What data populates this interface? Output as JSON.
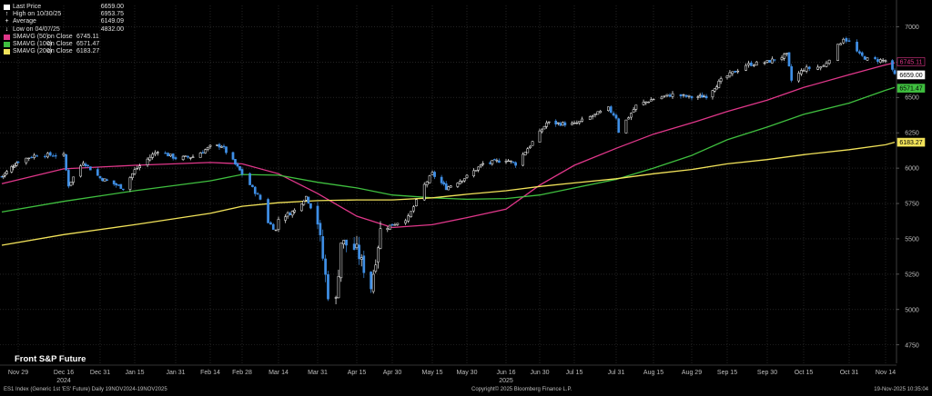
{
  "legend": [
    {
      "marker": "square-white",
      "name": "Last Price",
      "sub": "",
      "value": "6659.00",
      "color": "#ffffff"
    },
    {
      "marker": "tick",
      "name": "High on 10/30/25",
      "sub": "",
      "value": "6953.75",
      "color": "#ffffff"
    },
    {
      "marker": "plus",
      "name": "Average",
      "sub": "",
      "value": "6149.09",
      "color": "#ffffff"
    },
    {
      "marker": "tick-down",
      "name": "Low on 04/07/25",
      "sub": "",
      "value": "4832.00",
      "color": "#ffffff"
    },
    {
      "marker": "square",
      "name": "SMAVG (50)",
      "sub": "on Close",
      "value": "6745.11",
      "color": "#e0378a"
    },
    {
      "marker": "square",
      "name": "SMAVG (100)",
      "sub": "on Close",
      "value": "6571.47",
      "color": "#3fbf3f"
    },
    {
      "marker": "square",
      "name": "SMAVG (200)",
      "sub": "on Close",
      "value": "6183.27",
      "color": "#f2e35a"
    }
  ],
  "title_left": "Front S&P Future",
  "footer": {
    "left": "ES1 Index (Generic 1st 'ES' Future) Daily 19NOV2024-19NOV2025",
    "center": "Copyright© 2025 Bloomberg Finance L.P.",
    "right": "19-Nov-2025 10:35:04"
  },
  "chart_data": {
    "type": "line",
    "title": "Front S&P Future",
    "y_ticks": [
      4750,
      5000,
      5250,
      5500,
      5750,
      6000,
      6250,
      6500,
      6750,
      7000
    ],
    "ylim": [
      4620,
      7150
    ],
    "x_ticks": [
      "Nov 29",
      "Dec 16",
      "Dec 31",
      "Jan 15",
      "Jan 31",
      "Feb 14",
      "Feb 28",
      "Mar 14",
      "Mar 31",
      "Apr 15",
      "Apr 30",
      "May 15",
      "May 30",
      "Jun 16",
      "Jun 30",
      "Jul 15",
      "Jul 31",
      "Aug 15",
      "Aug 29",
      "Sep 15",
      "Sep 30",
      "Oct 15",
      "Oct 31",
      "Nov 14"
    ],
    "x_year_labels": [
      {
        "label": "2024",
        "under": "Dec 16"
      },
      {
        "label": "2025",
        "under": "Jun 16"
      }
    ],
    "price_points": [
      [
        "Nov 19",
        5940
      ],
      [
        "Nov 29",
        6050
      ],
      [
        "Dec 06",
        6095
      ],
      [
        "Dec 16",
        6090
      ],
      [
        "Dec 18",
        5880
      ],
      [
        "Dec 24",
        6045
      ],
      [
        "Dec 31",
        5930
      ],
      [
        "Jan 10",
        5860
      ],
      [
        "Jan 15",
        5985
      ],
      [
        "Jan 24",
        6125
      ],
      [
        "Jan 31",
        6070
      ],
      [
        "Feb 07",
        6080
      ],
      [
        "Feb 14",
        6150
      ],
      [
        "Feb 19",
        6160
      ],
      [
        "Feb 28",
        5960
      ],
      [
        "Mar 07",
        5780
      ],
      [
        "Mar 10",
        5620
      ],
      [
        "Mar 13",
        5560
      ],
      [
        "Mar 14",
        5640
      ],
      [
        "Mar 21",
        5700
      ],
      [
        "Mar 26",
        5800
      ],
      [
        "Mar 31",
        5620
      ],
      [
        "Apr 04",
        5110
      ],
      [
        "Apr 07",
        5060
      ],
      [
        "Apr 09",
        5480
      ],
      [
        "Apr 15",
        5420
      ],
      [
        "Apr 21",
        5160
      ],
      [
        "Apr 25",
        5560
      ],
      [
        "Apr 30",
        5600
      ],
      [
        "May 06",
        5650
      ],
      [
        "May 12",
        5880
      ],
      [
        "May 15",
        5960
      ],
      [
        "May 21",
        5860
      ],
      [
        "May 30",
        5940
      ],
      [
        "Jun 06",
        6030
      ],
      [
        "Jun 16",
        6060
      ],
      [
        "Jun 20",
        6030
      ],
      [
        "Jun 30",
        6250
      ],
      [
        "Jul 03",
        6320
      ],
      [
        "Jul 15",
        6310
      ],
      [
        "Jul 28",
        6420
      ],
      [
        "Jul 31",
        6360
      ],
      [
        "Aug 01",
        6260
      ],
      [
        "Aug 08",
        6440
      ],
      [
        "Aug 15",
        6490
      ],
      [
        "Aug 22",
        6520
      ],
      [
        "Aug 29",
        6500
      ],
      [
        "Sep 05",
        6510
      ],
      [
        "Sep 12",
        6620
      ],
      [
        "Sep 15",
        6650
      ],
      [
        "Sep 22",
        6730
      ],
      [
        "Sep 30",
        6750
      ],
      [
        "Oct 08",
        6800
      ],
      [
        "Oct 10",
        6620
      ],
      [
        "Oct 15",
        6700
      ],
      [
        "Oct 22",
        6720
      ],
      [
        "Oct 29",
        6920
      ],
      [
        "Oct 31",
        6890
      ],
      [
        "Nov 04",
        6800
      ],
      [
        "Nov 07",
        6770
      ],
      [
        "Nov 14",
        6760
      ],
      [
        "Nov 18",
        6659
      ]
    ],
    "series": [
      {
        "name": "SMAVG (50)",
        "color": "#e0378a",
        "value_label": "6745.11",
        "points": [
          [
            "Nov 19",
            5890
          ],
          [
            "Dec 16",
            5995
          ],
          [
            "Jan 15",
            6020
          ],
          [
            "Feb 14",
            6040
          ],
          [
            "Feb 28",
            6030
          ],
          [
            "Mar 14",
            5960
          ],
          [
            "Mar 31",
            5820
          ],
          [
            "Apr 15",
            5660
          ],
          [
            "Apr 30",
            5580
          ],
          [
            "May 15",
            5600
          ],
          [
            "May 30",
            5650
          ],
          [
            "Jun 16",
            5710
          ],
          [
            "Jun 30",
            5880
          ],
          [
            "Jul 15",
            6020
          ],
          [
            "Jul 31",
            6140
          ],
          [
            "Aug 15",
            6240
          ],
          [
            "Aug 29",
            6320
          ],
          [
            "Sep 15",
            6400
          ],
          [
            "Sep 30",
            6480
          ],
          [
            "Oct 15",
            6570
          ],
          [
            "Oct 31",
            6660
          ],
          [
            "Nov 14",
            6730
          ],
          [
            "Nov 18",
            6745
          ]
        ]
      },
      {
        "name": "SMAVG (100)",
        "color": "#3fbf3f",
        "value_label": "6571.47",
        "points": [
          [
            "Nov 19",
            5690
          ],
          [
            "Dec 16",
            5765
          ],
          [
            "Jan 15",
            5840
          ],
          [
            "Feb 14",
            5910
          ],
          [
            "Feb 28",
            5955
          ],
          [
            "Mar 14",
            5950
          ],
          [
            "Mar 31",
            5900
          ],
          [
            "Apr 15",
            5860
          ],
          [
            "Apr 30",
            5810
          ],
          [
            "May 15",
            5790
          ],
          [
            "May 30",
            5780
          ],
          [
            "Jun 16",
            5785
          ],
          [
            "Jun 30",
            5810
          ],
          [
            "Jul 15",
            5860
          ],
          [
            "Jul 31",
            5920
          ],
          [
            "Aug 15",
            6000
          ],
          [
            "Aug 29",
            6090
          ],
          [
            "Sep 15",
            6200
          ],
          [
            "Sep 30",
            6290
          ],
          [
            "Oct 15",
            6380
          ],
          [
            "Oct 31",
            6460
          ],
          [
            "Nov 14",
            6550
          ],
          [
            "Nov 18",
            6571
          ]
        ]
      },
      {
        "name": "SMAVG (200)",
        "color": "#f2e35a",
        "value_label": "6183.27",
        "points": [
          [
            "Nov 19",
            5455
          ],
          [
            "Dec 16",
            5530
          ],
          [
            "Jan 15",
            5600
          ],
          [
            "Feb 14",
            5680
          ],
          [
            "Feb 28",
            5730
          ],
          [
            "Mar 14",
            5755
          ],
          [
            "Mar 31",
            5770
          ],
          [
            "Apr 15",
            5775
          ],
          [
            "Apr 30",
            5775
          ],
          [
            "May 15",
            5790
          ],
          [
            "May 30",
            5815
          ],
          [
            "Jun 16",
            5840
          ],
          [
            "Jun 30",
            5870
          ],
          [
            "Jul 15",
            5895
          ],
          [
            "Jul 31",
            5925
          ],
          [
            "Aug 15",
            5960
          ],
          [
            "Aug 29",
            5990
          ],
          [
            "Sep 15",
            6030
          ],
          [
            "Sep 30",
            6060
          ],
          [
            "Oct 15",
            6095
          ],
          [
            "Oct 31",
            6130
          ],
          [
            "Nov 14",
            6165
          ],
          [
            "Nov 18",
            6183
          ]
        ]
      }
    ],
    "last_price_label": "6659.00",
    "colors": {
      "up": "#ffffff",
      "down": "#3f8fe6",
      "grid": "#3a3a3a",
      "axis_text": "#bdbdbd"
    }
  }
}
